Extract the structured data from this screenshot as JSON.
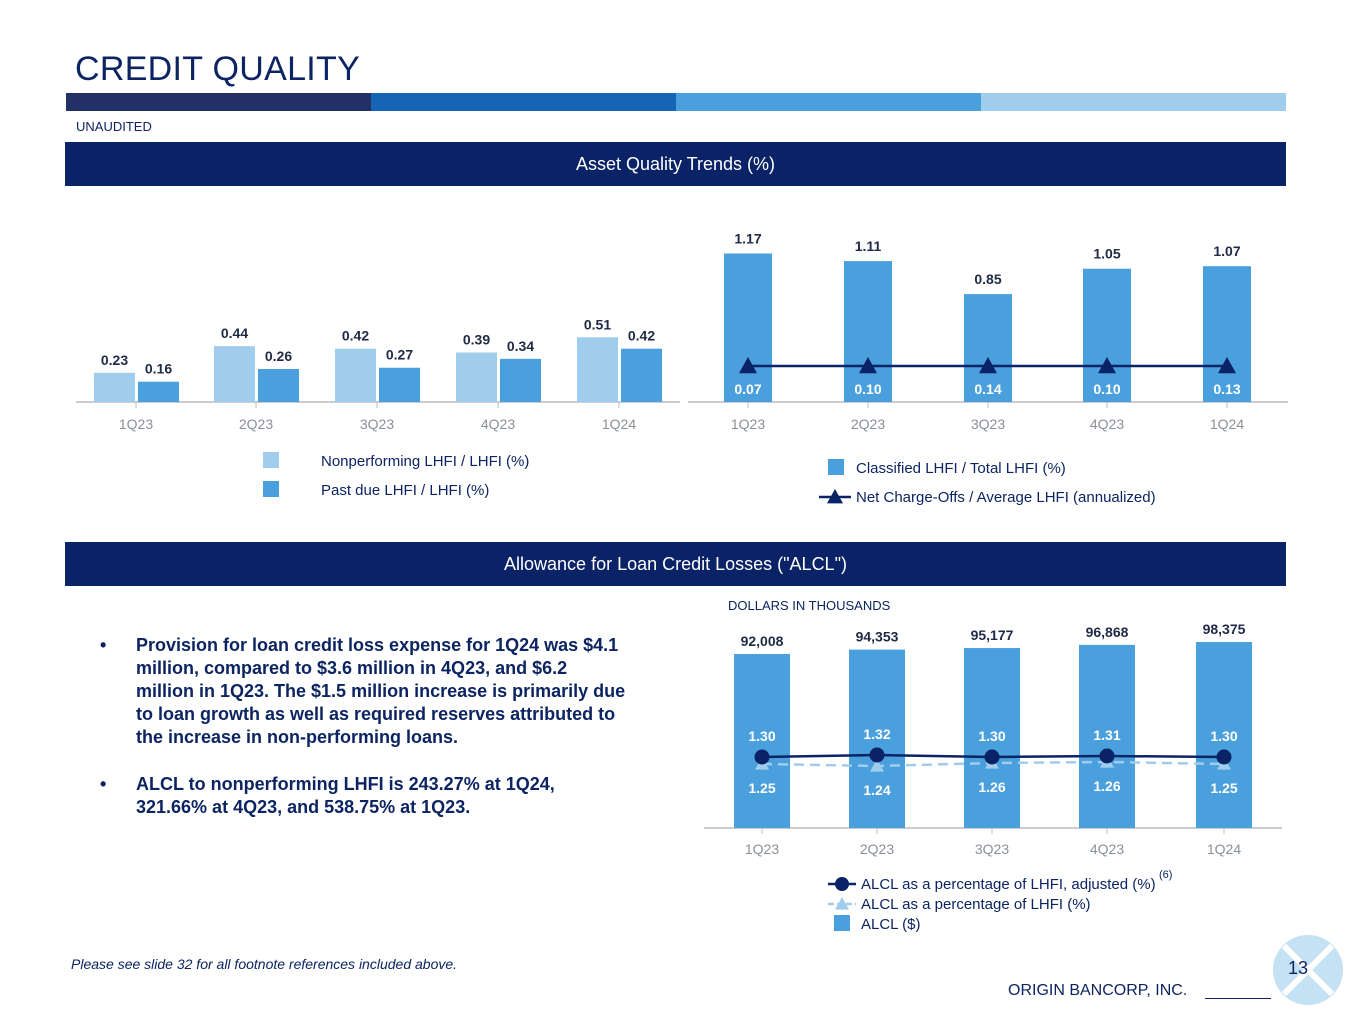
{
  "title": "CREDIT QUALITY",
  "tag": "UNAUDITED",
  "colors": {
    "navy": "#0a2266",
    "dark_blue": "#1565b4",
    "mid_blue": "#4aa0dc",
    "light_blue": "#9fcdeb",
    "header_dark": "#223066"
  },
  "sections": {
    "asset_quality": "Asset Quality Trends (%)",
    "alcl": "Allowance for Loan Credit Losses (\"ALCL\")"
  },
  "chart_data": [
    {
      "type": "bar",
      "categories": [
        "1Q23",
        "2Q23",
        "3Q23",
        "4Q23",
        "1Q24"
      ],
      "series": [
        {
          "name": "Nonperforming LHFI / LHFI (%)",
          "values": [
            0.23,
            0.44,
            0.42,
            0.39,
            0.51
          ],
          "labels": [
            "0.23",
            "0.44",
            "0.42",
            "0.39",
            "0.51"
          ],
          "color": "#9fcdeb"
        },
        {
          "name": "Past due LHFI / LHFI (%)",
          "values": [
            0.16,
            0.26,
            0.27,
            0.34,
            0.42
          ],
          "labels": [
            "0.16",
            "0.26",
            "0.27",
            "0.34",
            "0.42"
          ],
          "color": "#4aa0dc"
        }
      ],
      "ylim": [
        0,
        1.3
      ]
    },
    {
      "type": "bar",
      "categories": [
        "1Q23",
        "2Q23",
        "3Q23",
        "4Q23",
        "1Q24"
      ],
      "series": [
        {
          "name": "Classified LHFI / Total LHFI (%)",
          "values": [
            1.17,
            1.11,
            0.85,
            1.05,
            1.07
          ],
          "labels": [
            "1.17",
            "1.11",
            "0.85",
            "1.05",
            "1.07"
          ],
          "color": "#4aa0dc"
        },
        {
          "name": "Net Charge-Offs / Average LHFI (annualized)",
          "values": [
            0.07,
            0.1,
            0.14,
            0.1,
            0.13
          ],
          "labels": [
            "0.07",
            "0.10",
            "0.14",
            "0.10",
            "0.13"
          ],
          "color": "#0a2266",
          "style": "line"
        }
      ],
      "ylim": [
        0,
        1.3
      ]
    },
    {
      "type": "bar",
      "unit_label": "DOLLARS IN THOUSANDS",
      "categories": [
        "1Q23",
        "2Q23",
        "3Q23",
        "4Q23",
        "1Q24"
      ],
      "series": [
        {
          "name": "ALCL ($)",
          "values": [
            92008,
            94353,
            95177,
            96868,
            98375
          ],
          "labels": [
            "92,008",
            "94,353",
            "95,177",
            "96,868",
            "98,375"
          ],
          "color": "#4aa0dc"
        },
        {
          "name": "ALCL as a percentage of LHFI, adjusted (%)",
          "footnote": "(6)",
          "values": [
            1.3,
            1.32,
            1.3,
            1.31,
            1.3
          ],
          "labels": [
            "1.30",
            "1.32",
            "1.30",
            "1.31",
            "1.30"
          ],
          "color": "#0a2266",
          "style": "line"
        },
        {
          "name": "ALCL as a percentage of LHFI (%)",
          "values": [
            1.25,
            1.24,
            1.26,
            1.26,
            1.25
          ],
          "labels": [
            "1.25",
            "1.24",
            "1.26",
            "1.26",
            "1.25"
          ],
          "color": "#9fcdeb",
          "style": "dashed-line"
        }
      ],
      "ylim": [
        0,
        100000
      ]
    }
  ],
  "bullets": [
    "Provision for loan credit loss expense for 1Q24 was $4.1 million, compared to $3.6 million in 4Q23, and $6.2 million in 1Q23. The $1.5 million increase is primarily due to loan growth as well as required reserves attributed to the increase in non-performing loans.",
    "ALCL to nonperforming LHFI is 243.27% at 1Q24, 321.66% at 4Q23, and 538.75% at 1Q23."
  ],
  "bullet_symbol": "•",
  "footnote_ref": "Please see slide 32 for all footnote references included above.",
  "company": "ORIGIN BANCORP, INC.",
  "page_number": "13"
}
